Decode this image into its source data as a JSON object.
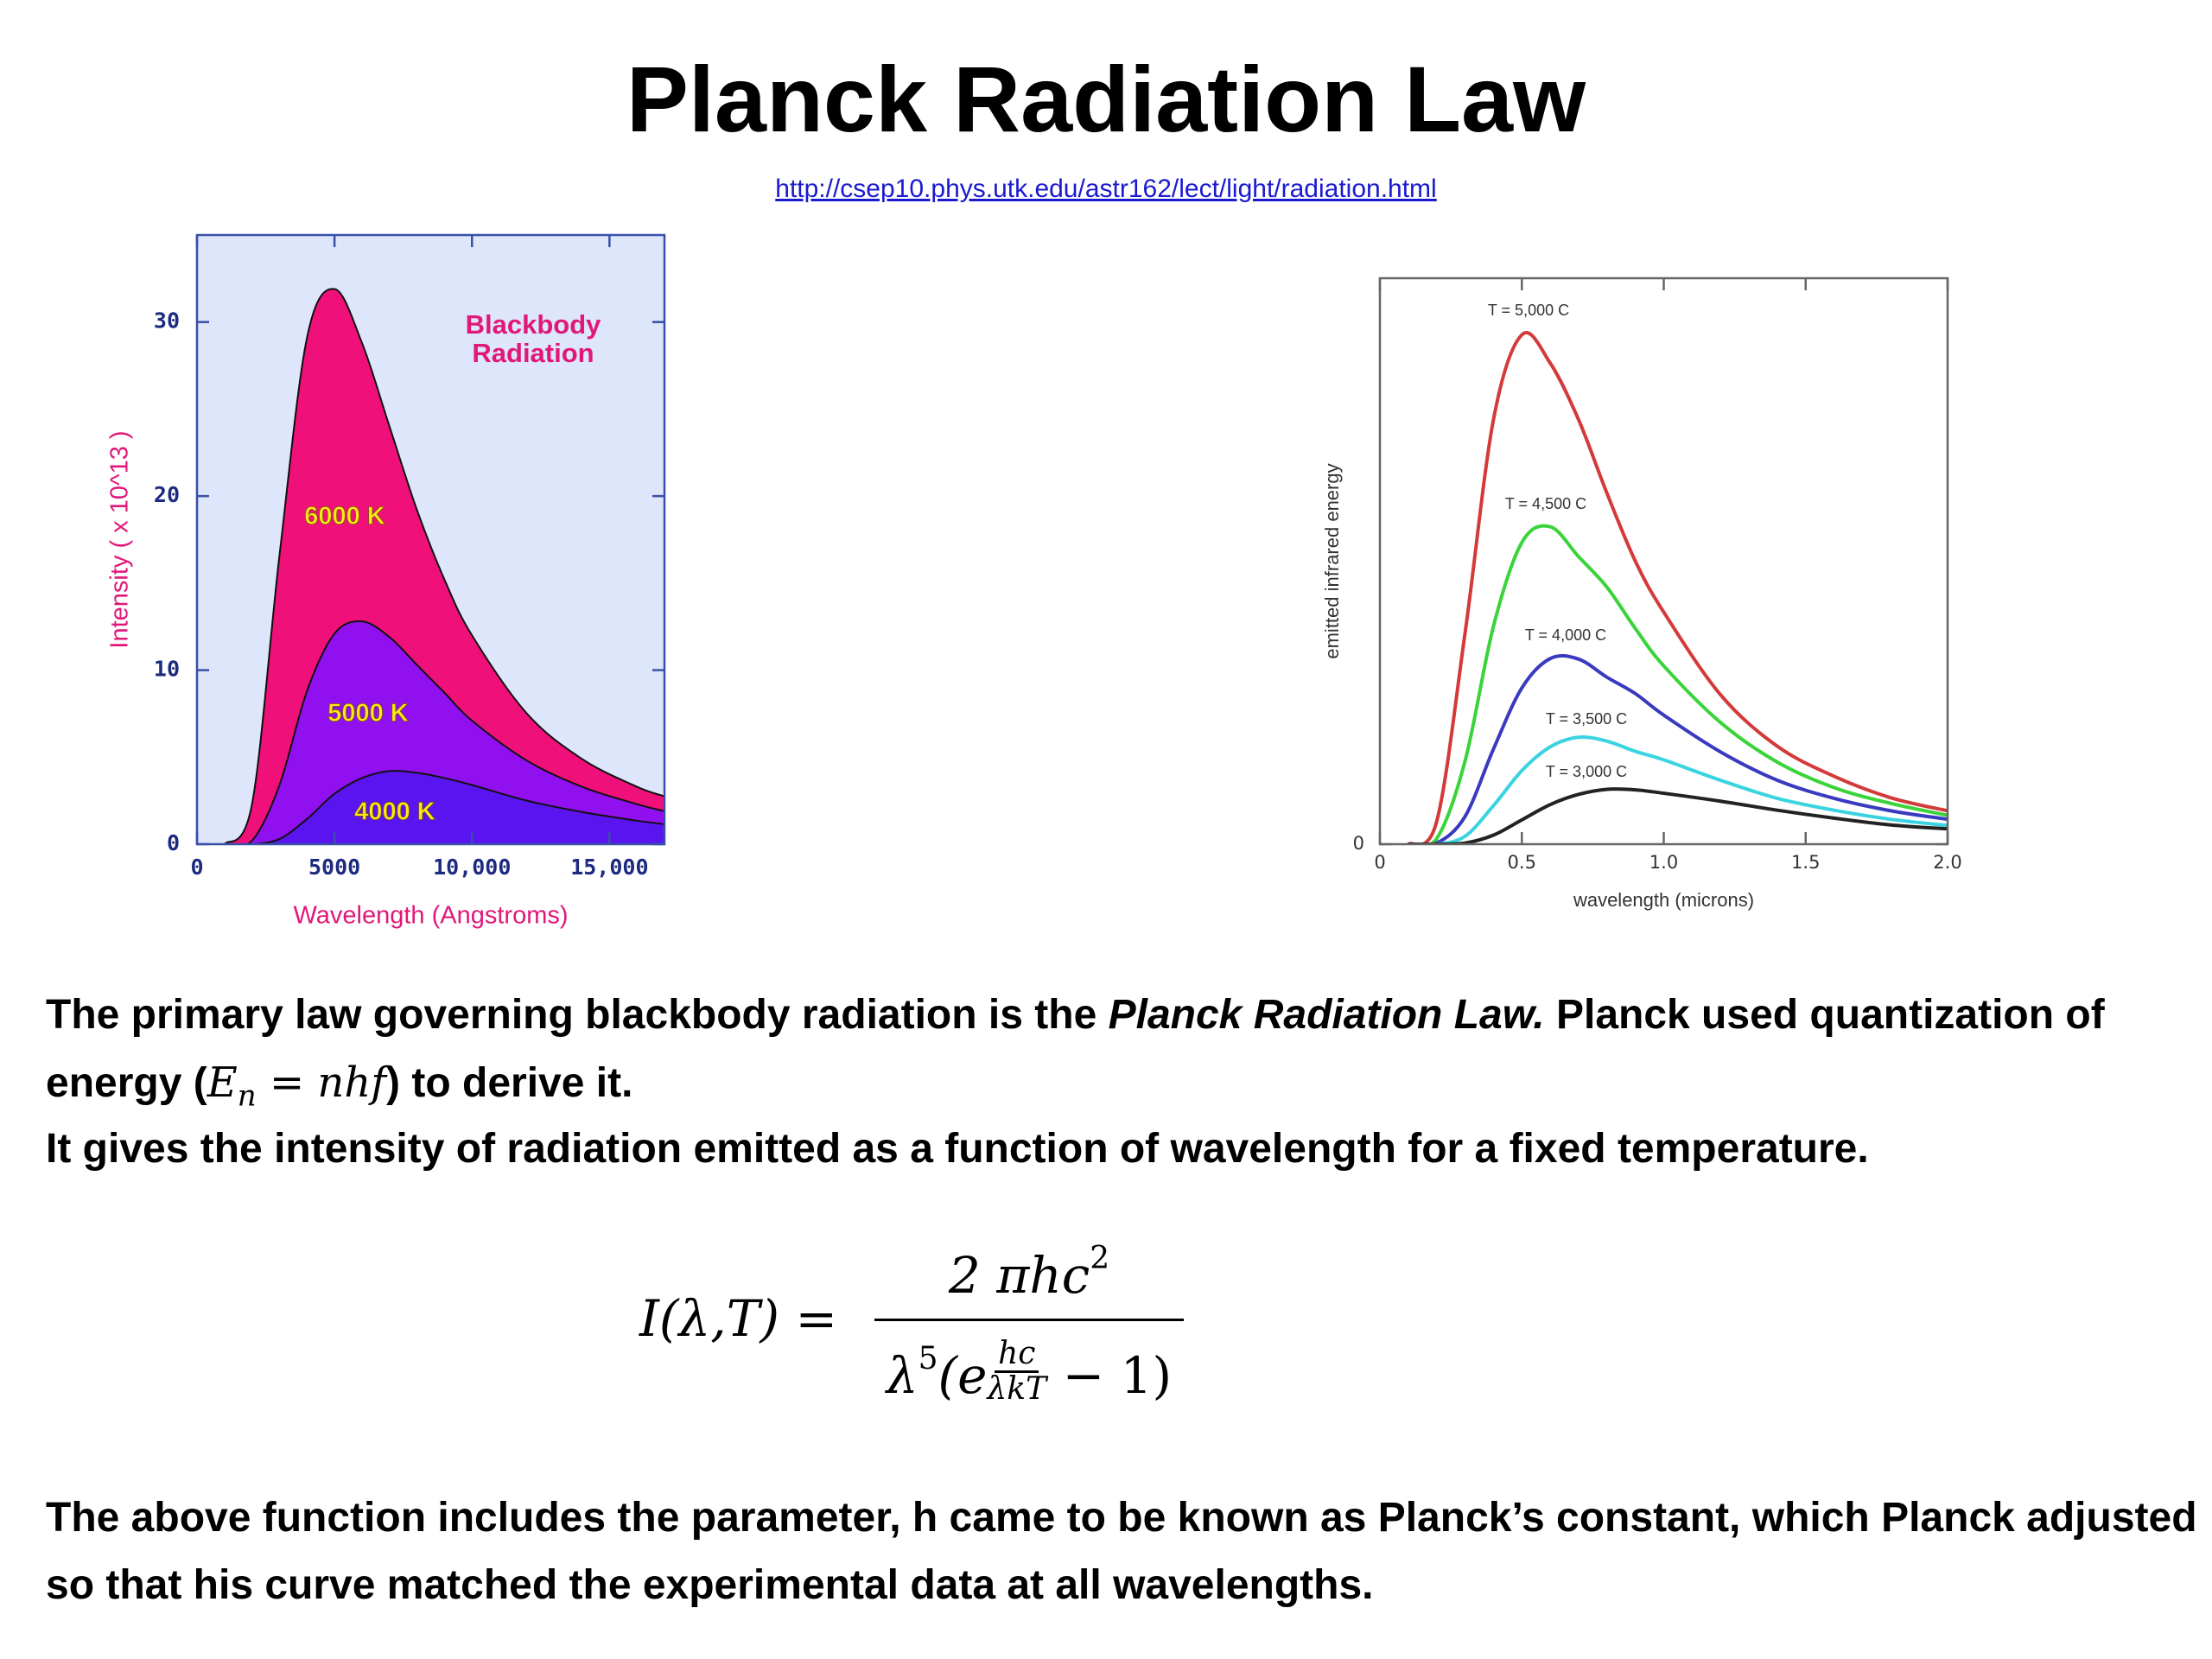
{
  "title": "Planck Radiation Law",
  "url": "http://csep10.phys.utk.edu/astr162/lect/light/radiation.html",
  "chart_data": [
    {
      "type": "area",
      "annotation": [
        "Blackbody",
        "Radiation"
      ],
      "xlabel": "Wavelength (Angstroms)",
      "ylabel": "Intensity ( x 10^13 )",
      "x": [
        1000,
        2000,
        3000,
        4000,
        5000,
        6000,
        7000,
        8000,
        9000,
        10000,
        12000,
        14000,
        16000,
        17000
      ],
      "series": [
        {
          "name": "6000 K",
          "color": "#f0107a",
          "values": [
            0,
            2.3,
            16.6,
            29.1,
            31.9,
            28.8,
            24.0,
            19.2,
            15.2,
            12.0,
            7.5,
            4.9,
            3.3,
            2.75
          ]
        },
        {
          "name": "5000 K",
          "color": "#9010f0",
          "values": [
            0,
            0.2,
            3.4,
            8.8,
            12.1,
            12.8,
            11.9,
            10.3,
            8.7,
            7.1,
            4.8,
            3.3,
            2.3,
            1.9
          ]
        },
        {
          "name": "4000 K",
          "color": "#5a14f0",
          "values": [
            0,
            0,
            0.3,
            1.45,
            2.9,
            3.8,
            4.2,
            4.1,
            3.8,
            3.4,
            2.5,
            1.85,
            1.35,
            1.15
          ]
        }
      ],
      "label_color": "#ffe81a",
      "background": "#dde6fa",
      "xlim": [
        0,
        17000
      ],
      "ylim": [
        0,
        35
      ],
      "xticks": [
        0,
        5000,
        {
          "value": 10000,
          "label": "10,000"
        },
        {
          "value": 15000,
          "label": "15,000"
        }
      ],
      "yticks": [
        0,
        10,
        20,
        30
      ]
    },
    {
      "type": "line",
      "xlabel": "wavelength (microns)",
      "ylabel": "emitted infrared energy",
      "x": [
        0.1,
        0.2,
        0.3,
        0.4,
        0.5,
        0.6,
        0.7,
        0.8,
        0.9,
        1.0,
        1.2,
        1.4,
        1.6,
        1.8,
        2.0
      ],
      "series": [
        {
          "name": "T = 5,000 C",
          "color": "#d43a3a",
          "values": [
            0,
            0.04,
            0.373,
            0.75,
            0.9,
            0.85,
            0.75,
            0.62,
            0.5,
            0.41,
            0.264,
            0.173,
            0.12,
            0.082,
            0.059
          ]
        },
        {
          "name": "T = 4,500 C",
          "color": "#3ad43a",
          "values": [
            0,
            0.01,
            0.147,
            0.385,
            0.533,
            0.561,
            0.508,
            0.454,
            0.381,
            0.315,
            0.215,
            0.145,
            0.1,
            0.072,
            0.051
          ]
        },
        {
          "name": "T = 4,000 C",
          "color": "#3a3ac0",
          "values": [
            0,
            0.002,
            0.049,
            0.168,
            0.276,
            0.328,
            0.327,
            0.295,
            0.266,
            0.228,
            0.163,
            0.113,
            0.081,
            0.059,
            0.044
          ]
        },
        {
          "name": "T = 3,500 C",
          "color": "#3ad4e0",
          "values": [
            0,
            0,
            0.014,
            0.068,
            0.13,
            0.172,
            0.189,
            0.182,
            0.164,
            0.149,
            0.113,
            0.081,
            0.06,
            0.044,
            0.033
          ]
        },
        {
          "name": "T = 3,000 C",
          "color": "#222222",
          "values": [
            0,
            0,
            0.002,
            0.016,
            0.043,
            0.07,
            0.088,
            0.097,
            0.096,
            0.09,
            0.076,
            0.06,
            0.046,
            0.034,
            0.027
          ]
        }
      ],
      "background": "#ffffff",
      "xlim": [
        0,
        2
      ],
      "ylim": [
        0,
        1
      ],
      "xticks": [
        0,
        0.5,
        {
          "value": 1,
          "label": "1.0"
        },
        1.5,
        {
          "value": 2,
          "label": "2.0"
        }
      ],
      "yticks": [
        0
      ]
    }
  ],
  "paragraphs": [
    {
      "parts": [
        "The primary law governing blackbody radiation is the ",
        "Planck Radiation Law.",
        " Planck used quantization of energy (",
        ") to derive it."
      ],
      "math": {
        "base": "E",
        "sub": "n",
        "rest": "= nhf"
      }
    },
    {
      "parts": [
        "It gives the intensity of radiation emitted as a function of wavelength for a fixed temperature."
      ]
    },
    {
      "parts": [
        "The above function includes the parameter, h came to be known as Planck’s constant, which Planck adjusted so that his curve matched the experimental data at all wavelengths."
      ]
    }
  ],
  "formula": {
    "lhs": "I(λ,T) =",
    "numerator": "2 πhc",
    "numerator_exp": "2",
    "denominator_base": "λ",
    "denominator_exp": "5",
    "exp_open": "(e",
    "exp_num": "hc",
    "exp_den": "λkT",
    "exp_close": " − 1)"
  }
}
